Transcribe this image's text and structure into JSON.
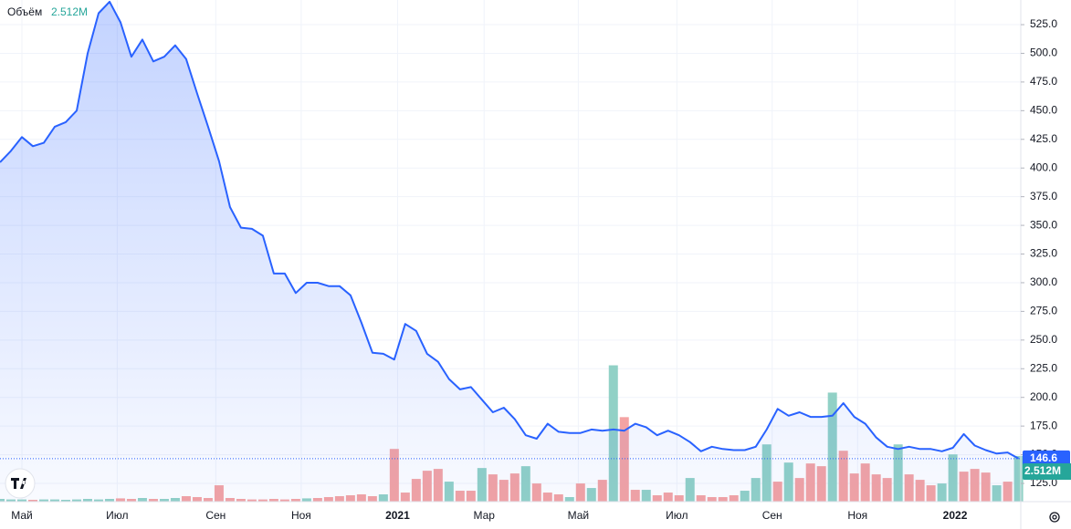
{
  "chart_data": {
    "type": "line",
    "xlim": [
      0,
      93.2
    ],
    "ylim": [
      109.1,
      546.5
    ],
    "xticks": [
      {
        "value": 2,
        "label": "Май"
      },
      {
        "value": 10.7,
        "label": "Июл"
      },
      {
        "value": 19.7,
        "label": "Сен"
      },
      {
        "value": 27.5,
        "label": "Ноя"
      },
      {
        "value": 36.3,
        "label": "2021"
      },
      {
        "value": 44.2,
        "label": "Мар"
      },
      {
        "value": 52.8,
        "label": "Май"
      },
      {
        "value": 61.8,
        "label": "Июл"
      },
      {
        "value": 70.5,
        "label": "Сен"
      },
      {
        "value": 78.3,
        "label": "Ноя"
      },
      {
        "value": 87.2,
        "label": "2022"
      }
    ],
    "yticks": [
      {
        "value": 125,
        "label": "125.0"
      },
      {
        "value": 150,
        "label": "150.0"
      },
      {
        "value": 175,
        "label": "175.0"
      },
      {
        "value": 200,
        "label": "200.0"
      },
      {
        "value": 225,
        "label": "225.0"
      },
      {
        "value": 250,
        "label": "250.0"
      },
      {
        "value": 275,
        "label": "275.0"
      },
      {
        "value": 300,
        "label": "300.0"
      },
      {
        "value": 325,
        "label": "325.0"
      },
      {
        "value": 350,
        "label": "350.0"
      },
      {
        "value": 375,
        "label": "375.0"
      },
      {
        "value": 400,
        "label": "400.0"
      },
      {
        "value": 425,
        "label": "425.0"
      },
      {
        "value": 450,
        "label": "450.0"
      },
      {
        "value": 475,
        "label": "475.0"
      },
      {
        "value": 500,
        "label": "500.0"
      },
      {
        "value": 525,
        "label": "525.0"
      }
    ],
    "grid": true,
    "series": [
      {
        "color": "#2962ff",
        "values": [
          405,
          415,
          427,
          419,
          422,
          436,
          440,
          450,
          500,
          535,
          545,
          527,
          497,
          512,
          493,
          497,
          507,
          495,
          465,
          436,
          406,
          366,
          348,
          347,
          341,
          308,
          308,
          291,
          300,
          300,
          297,
          297,
          289,
          265,
          239,
          238,
          233,
          264,
          258,
          238,
          231,
          216,
          207,
          209,
          198,
          187,
          191,
          181,
          167,
          164,
          177,
          170,
          169,
          169,
          172,
          171,
          172,
          171,
          177,
          174,
          167,
          171,
          167,
          161,
          153,
          157,
          155,
          154,
          154,
          157,
          172,
          190,
          184,
          187,
          183,
          183,
          184,
          195,
          183,
          177,
          165,
          157,
          155,
          157,
          155,
          155,
          153,
          156,
          168,
          158,
          154,
          151,
          152,
          146.6
        ]
      }
    ],
    "volume": {
      "name": "Объём",
      "ylim": [
        0,
        27.6
      ],
      "values": [
        0.15,
        0.12,
        0.12,
        0.1,
        0.12,
        0.12,
        0.1,
        0.12,
        0.15,
        0.12,
        0.15,
        0.18,
        0.15,
        0.2,
        0.15,
        0.15,
        0.2,
        0.3,
        0.25,
        0.2,
        0.9,
        0.2,
        0.15,
        0.12,
        0.12,
        0.15,
        0.12,
        0.15,
        0.18,
        0.2,
        0.25,
        0.3,
        0.35,
        0.4,
        0.3,
        0.4,
        2.9,
        0.5,
        1.25,
        1.7,
        1.8,
        1.1,
        0.6,
        0.6,
        1.85,
        1.5,
        1.2,
        1.55,
        1.95,
        1.0,
        0.5,
        0.4,
        0.25,
        1.0,
        0.75,
        1.2,
        7.5,
        4.65,
        0.65,
        0.65,
        0.35,
        0.5,
        0.35,
        1.3,
        0.35,
        0.25,
        0.25,
        0.35,
        0.6,
        1.3,
        3.15,
        1.1,
        2.15,
        1.3,
        2.1,
        1.95,
        6.0,
        2.8,
        1.55,
        2.1,
        1.5,
        1.3,
        3.15,
        1.5,
        1.2,
        0.9,
        1.0,
        2.6,
        1.65,
        1.8,
        1.6,
        0.9,
        1.1,
        2.512
      ],
      "colors": [
        "#91d1c6",
        "#91d1c6",
        "#91d1c6",
        "#f4a3a3",
        "#91d1c6",
        "#91d1c6",
        "#91d1c6",
        "#91d1c6",
        "#91d1c6",
        "#91d1c6",
        "#91d1c6",
        "#f4a3a3",
        "#f4a3a3",
        "#91d1c6",
        "#f4a3a3",
        "#91d1c6",
        "#91d1c6",
        "#f4a3a3",
        "#f4a3a3",
        "#f4a3a3",
        "#f4a3a3",
        "#f4a3a3",
        "#f4a3a3",
        "#f4a3a3",
        "#f4a3a3",
        "#f4a3a3",
        "#f4a3a3",
        "#f4a3a3",
        "#91d1c6",
        "#f4a3a3",
        "#f4a3a3",
        "#f4a3a3",
        "#f4a3a3",
        "#f4a3a3",
        "#f4a3a3",
        "#91d1c6",
        "#f4a3a3",
        "#f4a3a3",
        "#f4a3a3",
        "#f4a3a3",
        "#f4a3a3",
        "#91d1c6",
        "#f4a3a3",
        "#f4a3a3",
        "#91d1c6",
        "#f4a3a3",
        "#f4a3a3",
        "#f4a3a3",
        "#91d1c6",
        "#f4a3a3",
        "#f4a3a3",
        "#f4a3a3",
        "#91d1c6",
        "#f4a3a3",
        "#91d1c6",
        "#f4a3a3",
        "#91d1c6",
        "#f4a3a3",
        "#f4a3a3",
        "#91d1c6",
        "#f4a3a3",
        "#f4a3a3",
        "#f4a3a3",
        "#91d1c6",
        "#f4a3a3",
        "#f4a3a3",
        "#f4a3a3",
        "#f4a3a3",
        "#91d1c6",
        "#91d1c6",
        "#91d1c6",
        "#f4a3a3",
        "#91d1c6",
        "#f4a3a3",
        "#f4a3a3",
        "#f4a3a3",
        "#91d1c6",
        "#f4a3a3",
        "#f4a3a3",
        "#f4a3a3",
        "#f4a3a3",
        "#f4a3a3",
        "#91d1c6",
        "#f4a3a3",
        "#f4a3a3",
        "#f4a3a3",
        "#91d1c6",
        "#91d1c6",
        "#f4a3a3",
        "#f4a3a3",
        "#f4a3a3",
        "#91d1c6",
        "#f4a3a3",
        "#91d1c6"
      ],
      "value_labels": [
        null,
        null,
        null,
        null,
        null,
        null,
        null,
        null,
        null,
        null,
        null,
        null,
        null,
        null,
        null,
        null,
        null,
        null,
        null,
        null,
        null,
        null,
        null,
        null,
        null,
        null,
        null,
        null,
        null,
        null,
        null,
        null,
        null,
        null,
        null,
        null,
        null,
        null,
        null,
        null,
        null,
        null,
        null,
        null,
        null,
        null,
        null,
        null,
        null,
        null,
        null,
        null,
        null,
        null,
        null,
        null,
        null,
        null,
        null,
        null,
        null,
        null,
        null,
        null,
        null,
        null,
        null,
        null,
        null,
        null,
        null,
        null,
        null,
        null,
        null,
        null,
        null,
        null,
        null,
        null,
        null,
        null,
        null,
        null,
        null,
        null,
        null,
        null,
        null,
        null,
        null,
        null,
        null,
        "2.512M"
      ]
    }
  }
}
